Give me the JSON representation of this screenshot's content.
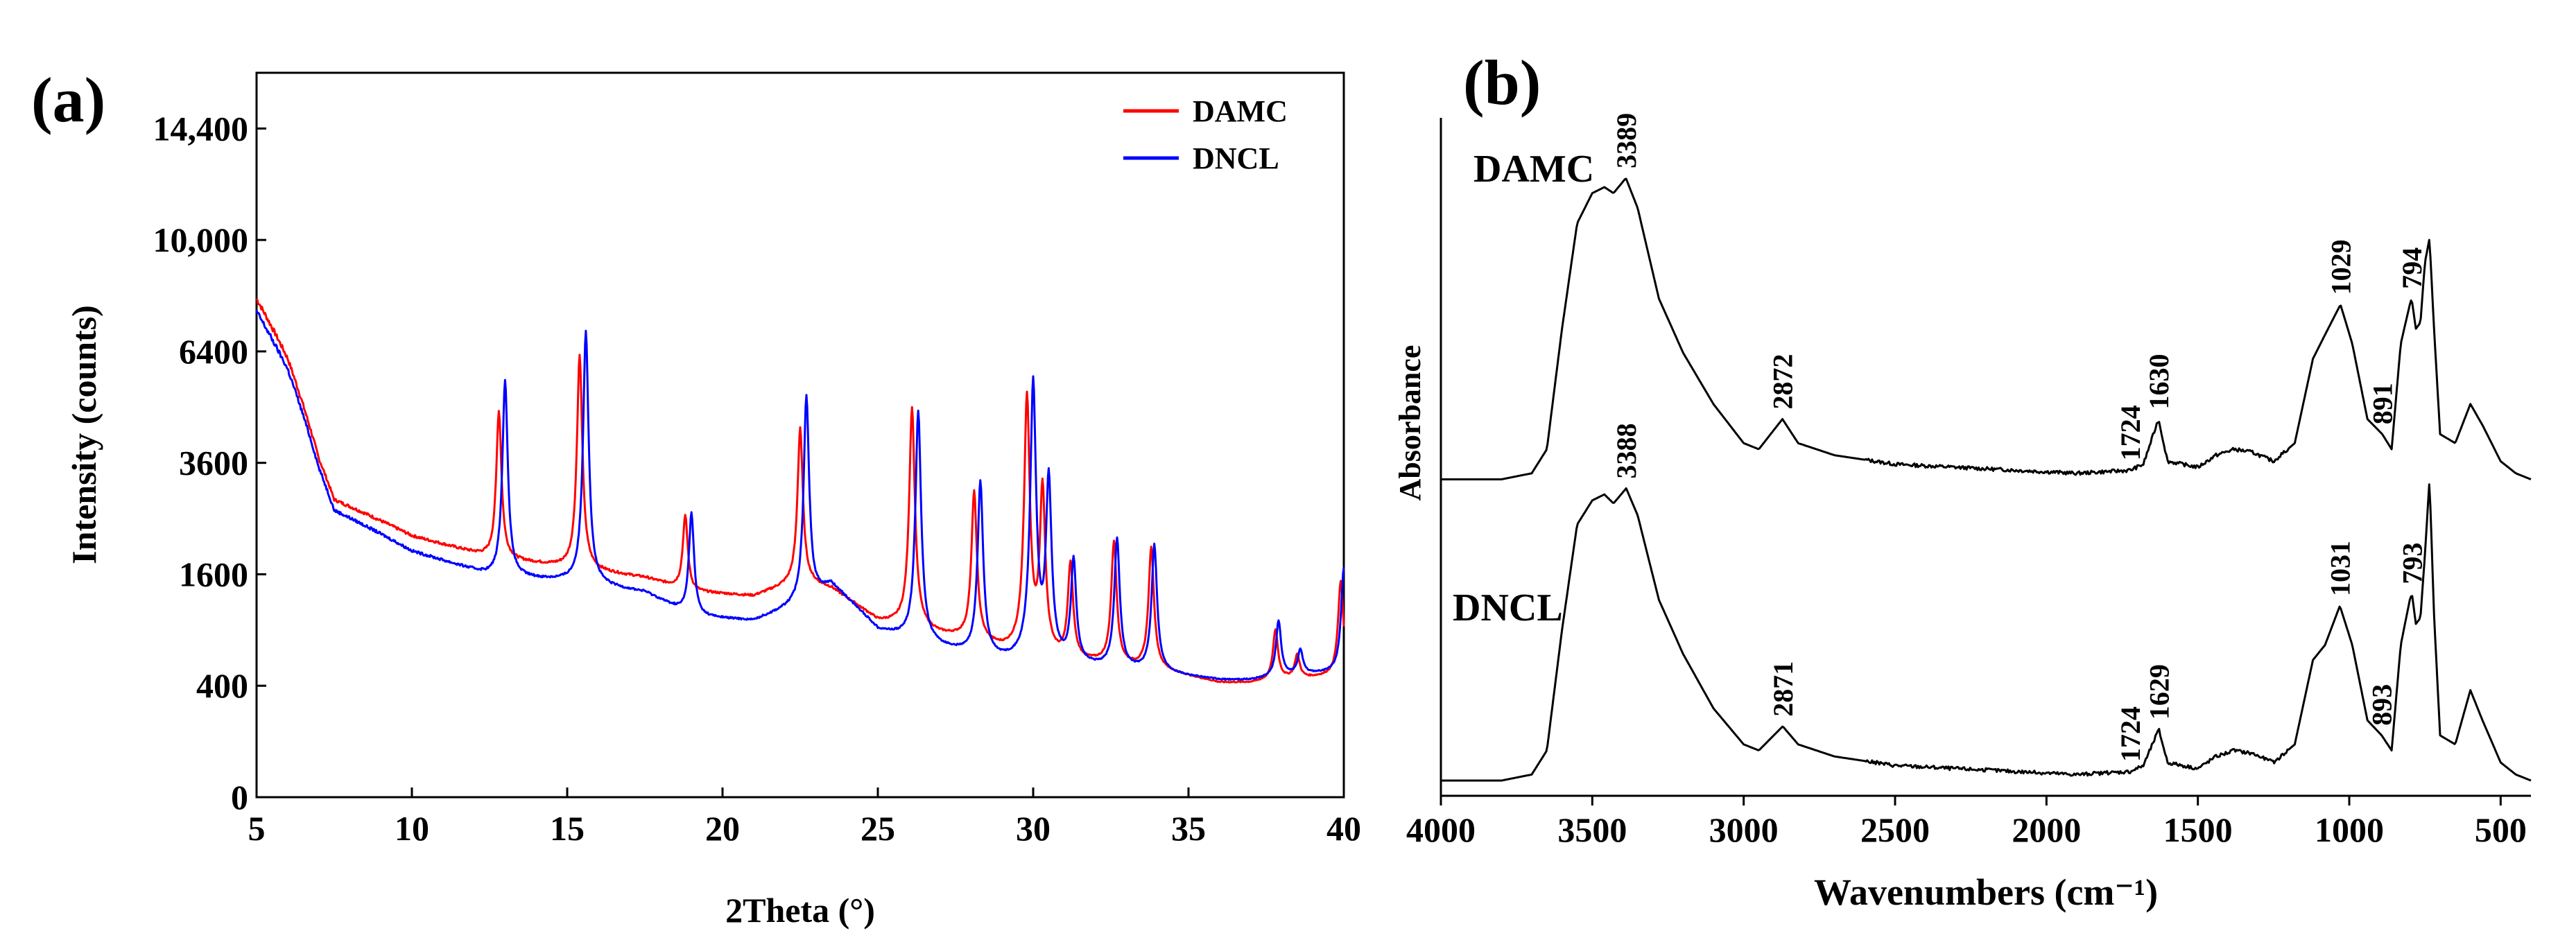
{
  "chart_data": [
    {
      "type": "line",
      "panel_label": "(a)",
      "title": "",
      "xlabel": "2Theta (°)",
      "ylabel": "Intensity (counts)",
      "xlim": [
        5,
        40
      ],
      "y_scale": "sqrt",
      "ylim": [
        0,
        16900
      ],
      "x_ticks": [
        5,
        10,
        15,
        20,
        25,
        30,
        35,
        40
      ],
      "x_tick_labels": [
        "5",
        "10",
        "15",
        "20",
        "25",
        "30",
        "35",
        "40"
      ],
      "y_ticks": [
        0,
        400,
        1600,
        3600,
        6400,
        10000,
        14400
      ],
      "y_tick_labels": [
        "0",
        "400",
        "1600",
        "3600",
        "6400",
        "10,000",
        "14,400"
      ],
      "legend_position": "top-right",
      "series": [
        {
          "name": "DAMC",
          "color": "#ff0000",
          "base": [
            [
              5,
              8000
            ],
            [
              6,
              6200
            ],
            [
              7,
              3700
            ],
            [
              7.5,
              2850
            ],
            [
              10,
              2200
            ],
            [
              12.5,
              1850
            ],
            [
              15,
              1700
            ],
            [
              17.5,
              1550
            ],
            [
              19,
              1360
            ],
            [
              21,
              1300
            ],
            [
              22.5,
              1500
            ],
            [
              23.5,
              1400
            ],
            [
              25,
              1000
            ],
            [
              26,
              950
            ],
            [
              27,
              850
            ],
            [
              28,
              800
            ],
            [
              29,
              700
            ],
            [
              30,
              650
            ],
            [
              31,
              600
            ],
            [
              32,
              580
            ],
            [
              33,
              550
            ],
            [
              34,
              520
            ],
            [
              35,
              470
            ],
            [
              36,
              420
            ],
            [
              37,
              420
            ],
            [
              38,
              450
            ],
            [
              39,
              460
            ],
            [
              40,
              480
            ]
          ],
          "peaks": [
            [
              12.8,
              4800
            ],
            [
              15.4,
              6300
            ],
            [
              18.8,
              2550
            ],
            [
              22.5,
              4400
            ],
            [
              26.1,
              4900
            ],
            [
              28.1,
              3000
            ],
            [
              29.8,
              5200
            ],
            [
              30.3,
              3100
            ],
            [
              31.2,
              1750
            ],
            [
              32.6,
              2100
            ],
            [
              33.8,
              2000
            ],
            [
              37.8,
              900
            ],
            [
              38.5,
              650
            ],
            [
              39.9,
              1500
            ]
          ]
        },
        {
          "name": "DNCL",
          "color": "#0000ff",
          "base": [
            [
              5,
              7600
            ],
            [
              6,
              5900
            ],
            [
              7,
              3500
            ],
            [
              7.5,
              2650
            ],
            [
              10,
              1950
            ],
            [
              12.5,
              1580
            ],
            [
              15,
              1500
            ],
            [
              17.5,
              1350
            ],
            [
              19,
              1050
            ],
            [
              21,
              1000
            ],
            [
              22.5,
              1200
            ],
            [
              23.5,
              1450
            ],
            [
              25,
              900
            ],
            [
              26,
              800
            ],
            [
              27,
              720
            ],
            [
              28,
              650
            ],
            [
              29,
              600
            ],
            [
              30,
              580
            ],
            [
              31,
              560
            ],
            [
              32,
              540
            ],
            [
              33,
              520
            ],
            [
              34,
              500
            ],
            [
              35,
              470
            ],
            [
              36,
              440
            ],
            [
              37,
              440
            ],
            [
              38,
              470
            ],
            [
              39,
              490
            ],
            [
              40,
              500
            ]
          ],
          "peaks": [
            [
              13.0,
              5600
            ],
            [
              15.6,
              7000
            ],
            [
              19.0,
              2600
            ],
            [
              22.7,
              5200
            ],
            [
              26.3,
              4800
            ],
            [
              28.3,
              3200
            ],
            [
              30.0,
              5600
            ],
            [
              30.5,
              3300
            ],
            [
              31.3,
              1800
            ],
            [
              32.7,
              2150
            ],
            [
              33.9,
              2050
            ],
            [
              37.9,
              1000
            ],
            [
              38.6,
              700
            ],
            [
              40.0,
              1700
            ]
          ]
        }
      ]
    },
    {
      "type": "line",
      "panel_label": "(b)",
      "title": "",
      "xlabel": "Wavenumbers (cm⁻¹)",
      "ylabel": "Absorbance",
      "xlim": [
        4000,
        400
      ],
      "x_ticks": [
        4000,
        3500,
        3000,
        2500,
        2000,
        1500,
        1000,
        500
      ],
      "x_tick_labels": [
        "4000",
        "3500",
        "3000",
        "2500",
        "2000",
        "1500",
        "1000",
        "500"
      ],
      "ylim": [
        0,
        2.2
      ],
      "series": [
        {
          "name": "DAMC",
          "offset": 1.0,
          "color": "#000000",
          "points": [
            [
              4000,
              0.0
            ],
            [
              3800,
              0.0
            ],
            [
              3700,
              0.02
            ],
            [
              3650,
              0.1
            ],
            [
              3600,
              0.5
            ],
            [
              3550,
              0.85
            ],
            [
              3500,
              0.95
            ],
            [
              3460,
              0.97
            ],
            [
              3430,
              0.95
            ],
            [
              3389,
              1.0
            ],
            [
              3350,
              0.9
            ],
            [
              3280,
              0.6
            ],
            [
              3200,
              0.42
            ],
            [
              3100,
              0.25
            ],
            [
              3000,
              0.12
            ],
            [
              2950,
              0.1
            ],
            [
              2872,
              0.2
            ],
            [
              2820,
              0.12
            ],
            [
              2700,
              0.08
            ],
            [
              2500,
              0.05
            ],
            [
              2300,
              0.04
            ],
            [
              2100,
              0.03
            ],
            [
              1900,
              0.02
            ],
            [
              1724,
              0.03
            ],
            [
              1680,
              0.05
            ],
            [
              1630,
              0.2
            ],
            [
              1600,
              0.06
            ],
            [
              1500,
              0.04
            ],
            [
              1440,
              0.08
            ],
            [
              1380,
              0.1
            ],
            [
              1320,
              0.09
            ],
            [
              1250,
              0.06
            ],
            [
              1180,
              0.12
            ],
            [
              1120,
              0.4
            ],
            [
              1080,
              0.48
            ],
            [
              1029,
              0.58
            ],
            [
              990,
              0.45
            ],
            [
              940,
              0.2
            ],
            [
              891,
              0.15
            ],
            [
              860,
              0.1
            ],
            [
              830,
              0.45
            ],
            [
              800,
              0.58
            ],
            [
              794,
              0.6
            ],
            [
              780,
              0.5
            ],
            [
              765,
              0.52
            ],
            [
              750,
              0.72
            ],
            [
              735,
              0.8
            ],
            [
              720,
              0.5
            ],
            [
              700,
              0.15
            ],
            [
              650,
              0.12
            ],
            [
              600,
              0.25
            ],
            [
              560,
              0.18
            ],
            [
              500,
              0.06
            ],
            [
              450,
              0.02
            ],
            [
              400,
              0.0
            ]
          ],
          "annotations": [
            {
              "x": 3389,
              "label": "3389"
            },
            {
              "x": 2872,
              "label": "2872"
            },
            {
              "x": 1724,
              "label": "1724"
            },
            {
              "x": 1630,
              "label": "1630"
            },
            {
              "x": 1029,
              "label": "1029"
            },
            {
              "x": 891,
              "label": "891"
            },
            {
              "x": 794,
              "label": "794"
            }
          ]
        },
        {
          "name": "DNCL",
          "offset": 0.0,
          "color": "#000000",
          "points": [
            [
              4000,
              0.0
            ],
            [
              3800,
              0.0
            ],
            [
              3700,
              0.02
            ],
            [
              3650,
              0.1
            ],
            [
              3600,
              0.5
            ],
            [
              3550,
              0.85
            ],
            [
              3500,
              0.93
            ],
            [
              3460,
              0.95
            ],
            [
              3430,
              0.92
            ],
            [
              3388,
              0.97
            ],
            [
              3350,
              0.88
            ],
            [
              3280,
              0.6
            ],
            [
              3200,
              0.42
            ],
            [
              3100,
              0.24
            ],
            [
              3000,
              0.12
            ],
            [
              2950,
              0.1
            ],
            [
              2871,
              0.18
            ],
            [
              2820,
              0.12
            ],
            [
              2700,
              0.08
            ],
            [
              2500,
              0.05
            ],
            [
              2300,
              0.04
            ],
            [
              2100,
              0.03
            ],
            [
              1900,
              0.02
            ],
            [
              1724,
              0.03
            ],
            [
              1680,
              0.05
            ],
            [
              1629,
              0.17
            ],
            [
              1600,
              0.06
            ],
            [
              1500,
              0.04
            ],
            [
              1440,
              0.08
            ],
            [
              1380,
              0.1
            ],
            [
              1320,
              0.09
            ],
            [
              1250,
              0.06
            ],
            [
              1180,
              0.12
            ],
            [
              1120,
              0.4
            ],
            [
              1080,
              0.45
            ],
            [
              1031,
              0.58
            ],
            [
              990,
              0.45
            ],
            [
              940,
              0.2
            ],
            [
              893,
              0.15
            ],
            [
              860,
              0.1
            ],
            [
              830,
              0.45
            ],
            [
              800,
              0.6
            ],
            [
              793,
              0.62
            ],
            [
              780,
              0.52
            ],
            [
              765,
              0.54
            ],
            [
              750,
              0.75
            ],
            [
              735,
              1.0
            ],
            [
              720,
              0.55
            ],
            [
              700,
              0.15
            ],
            [
              650,
              0.12
            ],
            [
              600,
              0.3
            ],
            [
              560,
              0.2
            ],
            [
              500,
              0.06
            ],
            [
              450,
              0.02
            ],
            [
              400,
              0.0
            ]
          ],
          "annotations": [
            {
              "x": 3388,
              "label": "3388"
            },
            {
              "x": 2871,
              "label": "2871"
            },
            {
              "x": 1724,
              "label": "1724"
            },
            {
              "x": 1629,
              "label": "1629"
            },
            {
              "x": 1031,
              "label": "1031"
            },
            {
              "x": 893,
              "label": "893"
            },
            {
              "x": 793,
              "label": "793"
            }
          ]
        }
      ]
    }
  ]
}
